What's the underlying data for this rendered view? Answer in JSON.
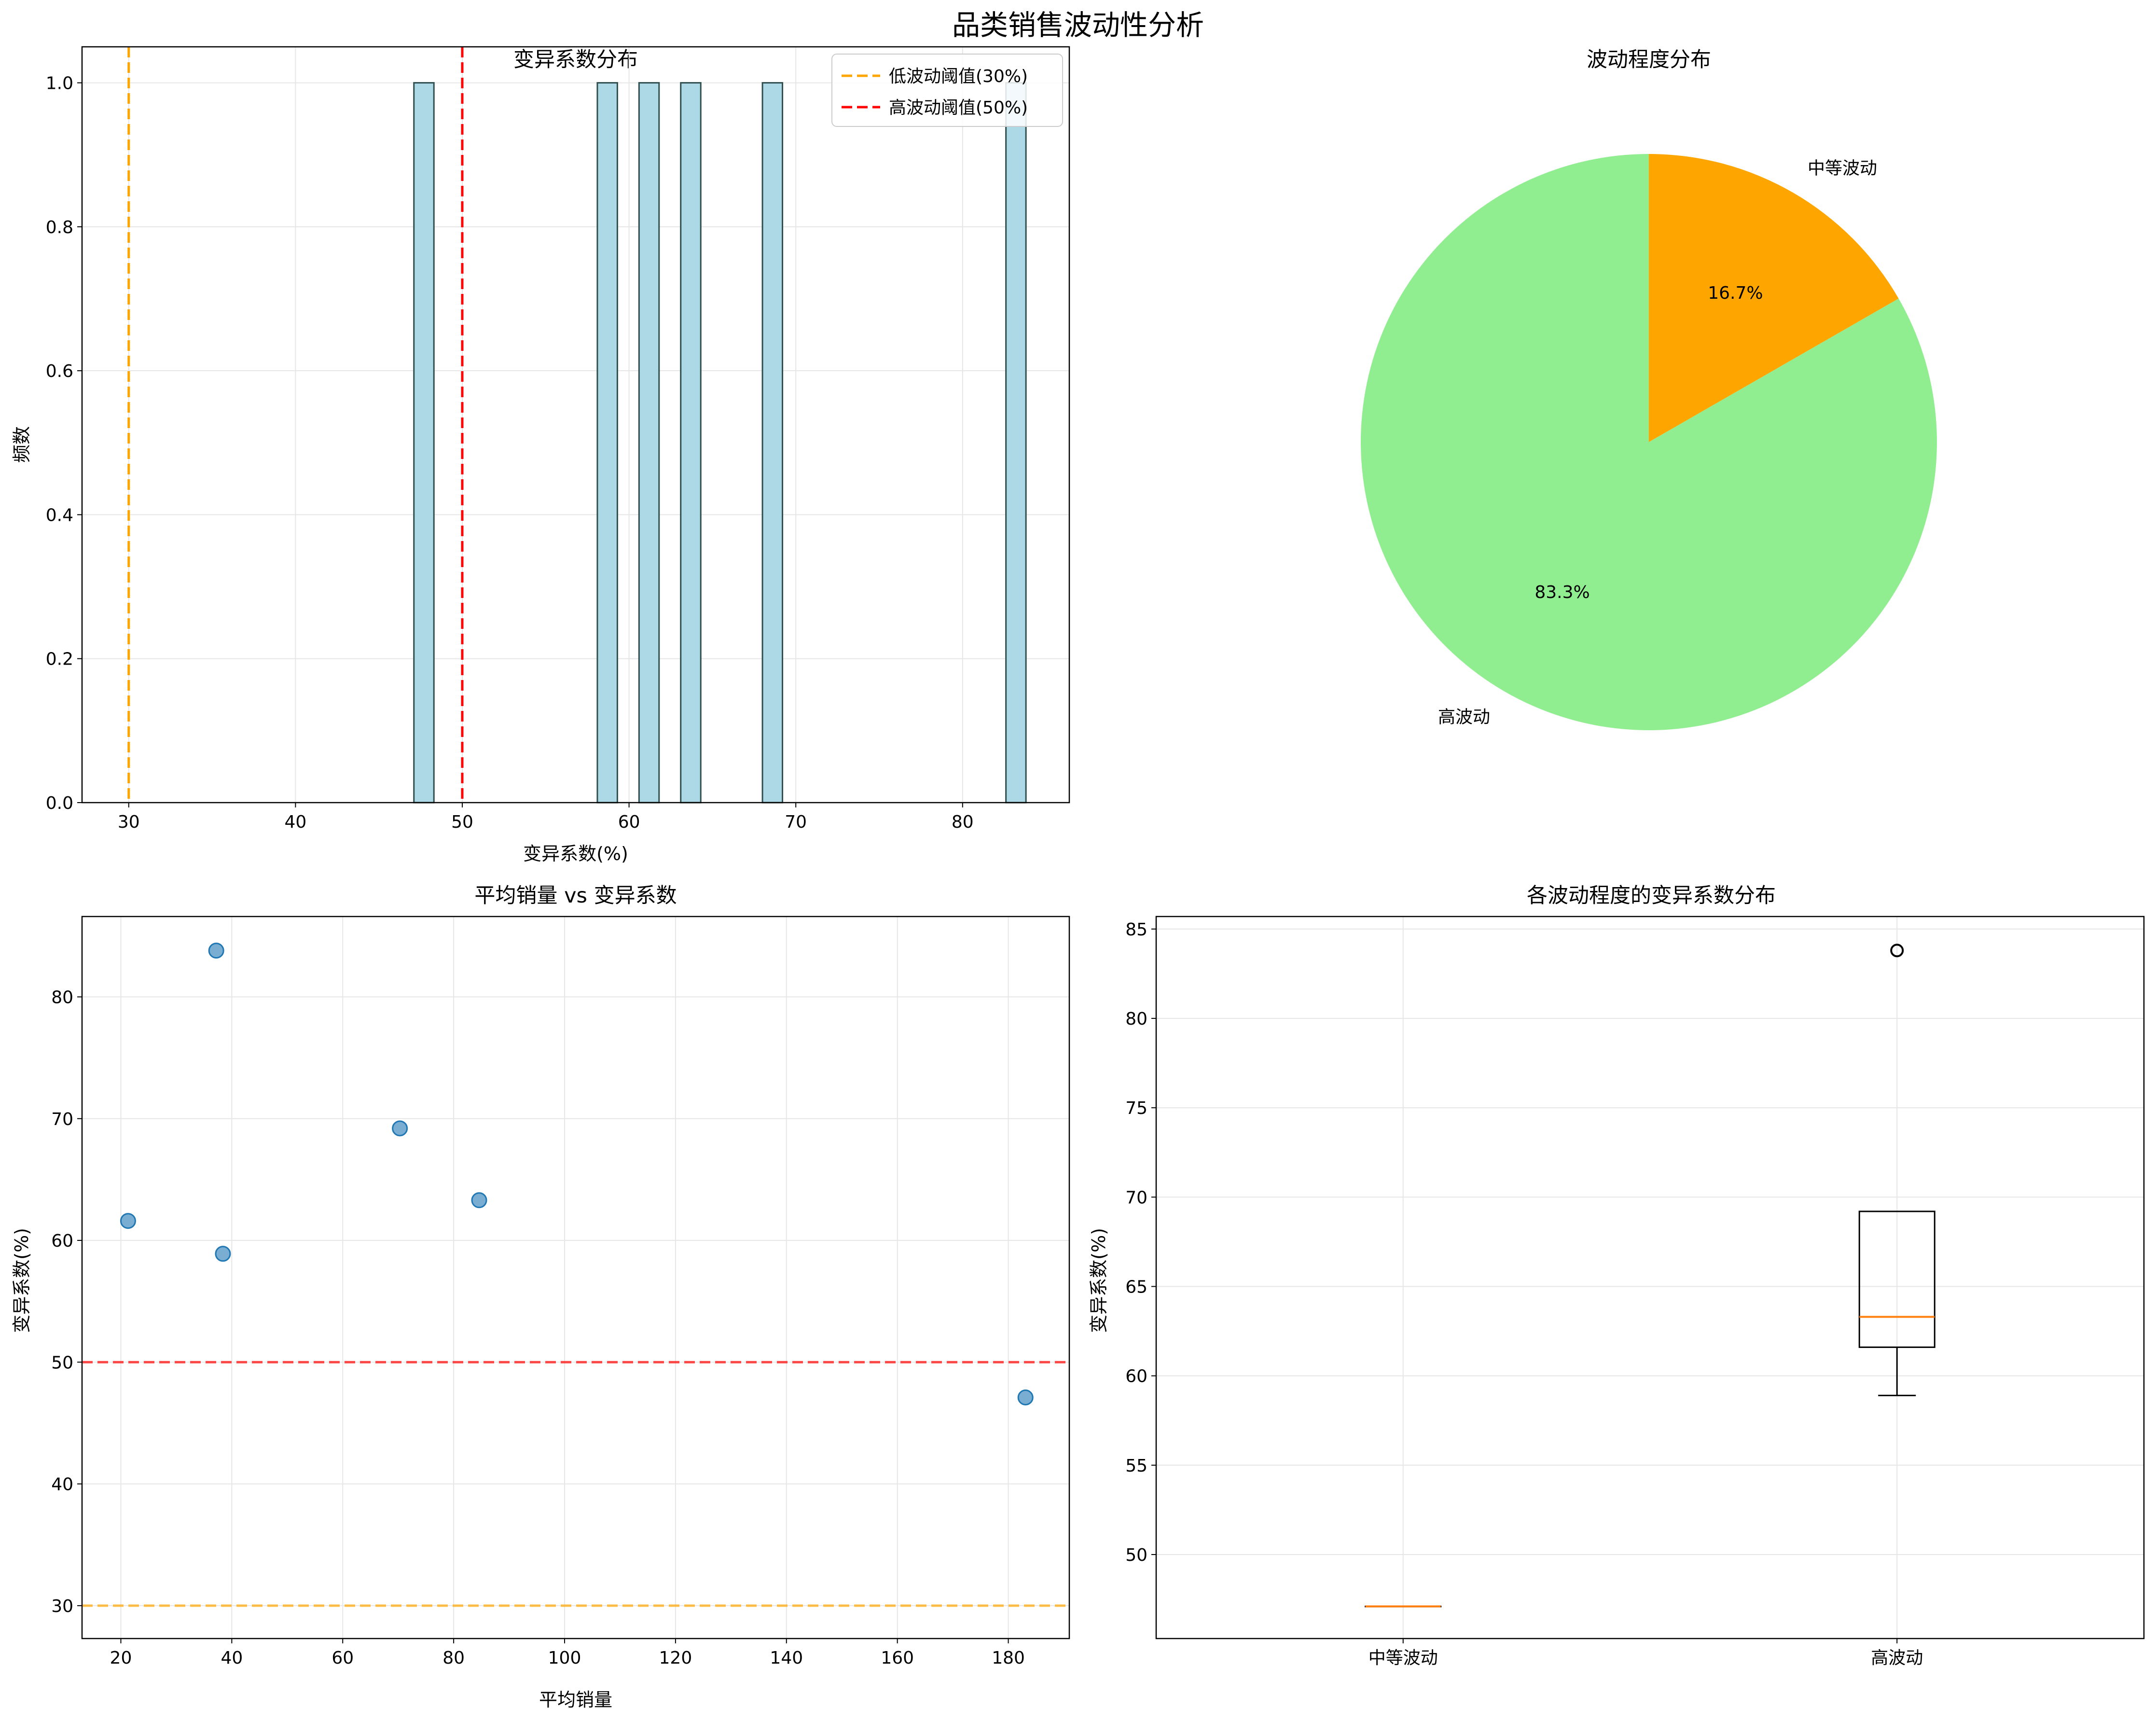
{
  "figure": {
    "title": "品类销售波动性分析"
  },
  "colors": {
    "hist_fill": "#add8e6",
    "hist_edge": "#2f4f4f",
    "low_threshold": "#ffa500",
    "high_threshold": "#ff0000",
    "pie_medium": "#ffa500",
    "pie_high": "#90ee90",
    "scatter": "#1f77b4",
    "median": "#ff7f0e",
    "grid": "#e6e6e6"
  },
  "chart_data": [
    {
      "type": "bar",
      "title": "变异系数分布",
      "xlabel": "变异系数(%)",
      "ylabel": "频数",
      "xlim": [
        27.2,
        86.4
      ],
      "ylim": [
        0,
        1.05
      ],
      "xticks": [
        30,
        40,
        50,
        60,
        70,
        80
      ],
      "yticks": [
        0.0,
        0.2,
        0.4,
        0.6,
        0.8,
        1.0
      ],
      "grid": true,
      "bins": [
        {
          "start": 47.1,
          "end": 48.3,
          "count": 1
        },
        {
          "start": 58.1,
          "end": 59.3,
          "count": 1
        },
        {
          "start": 60.6,
          "end": 61.8,
          "count": 1
        },
        {
          "start": 63.1,
          "end": 64.3,
          "count": 1
        },
        {
          "start": 68.0,
          "end": 69.2,
          "count": 1
        },
        {
          "start": 82.6,
          "end": 83.8,
          "count": 1
        }
      ],
      "reference_lines": [
        {
          "x": 30,
          "label": "低波动阈值(30%)",
          "style": "dashed",
          "color": "#ffa500"
        },
        {
          "x": 50,
          "label": "高波动阈值(50%)",
          "style": "dashed",
          "color": "#ff0000"
        }
      ],
      "legend": "top-right"
    },
    {
      "type": "pie",
      "title": "波动程度分布",
      "slices": [
        {
          "label": "中等波动",
          "value": 16.7,
          "pct_label": "16.7%",
          "color": "#ffa500"
        },
        {
          "label": "高波动",
          "value": 83.3,
          "pct_label": "83.3%",
          "color": "#90ee90"
        }
      ]
    },
    {
      "type": "scatter",
      "title": "平均销量 vs 变异系数",
      "xlabel": "平均销量",
      "ylabel": "变异系数(%)",
      "xlim": [
        13,
        191
      ],
      "ylim": [
        27.3,
        86.6
      ],
      "xticks": [
        20,
        40,
        60,
        80,
        100,
        120,
        140,
        160,
        180
      ],
      "yticks": [
        30,
        40,
        50,
        60,
        70,
        80
      ],
      "grid": true,
      "points": [
        {
          "x": 21.3,
          "y": 61.6
        },
        {
          "x": 37.2,
          "y": 83.8
        },
        {
          "x": 38.4,
          "y": 58.9
        },
        {
          "x": 70.3,
          "y": 69.2
        },
        {
          "x": 84.6,
          "y": 63.3
        },
        {
          "x": 183.1,
          "y": 47.1
        }
      ],
      "reference_lines": [
        {
          "y": 50,
          "style": "dashed",
          "color": "#ff0000"
        },
        {
          "y": 30,
          "style": "dashed",
          "color": "#ffa500"
        }
      ]
    },
    {
      "type": "box",
      "title": "各波动程度的变异系数分布",
      "ylabel": "变异系数(%)",
      "categories": [
        "中等波动",
        "高波动"
      ],
      "ylim": [
        45.3,
        85.7
      ],
      "yticks": [
        50,
        55,
        60,
        65,
        70,
        75,
        80,
        85
      ],
      "grid": true,
      "boxes": [
        {
          "category": "中等波动",
          "min": 47.1,
          "q1": 47.1,
          "median": 47.1,
          "q3": 47.1,
          "max": 47.1,
          "outliers": []
        },
        {
          "category": "高波动",
          "min": 58.9,
          "q1": 61.6,
          "median": 63.3,
          "q3": 69.2,
          "max": 69.2,
          "outliers": [
            83.8
          ]
        }
      ]
    }
  ]
}
